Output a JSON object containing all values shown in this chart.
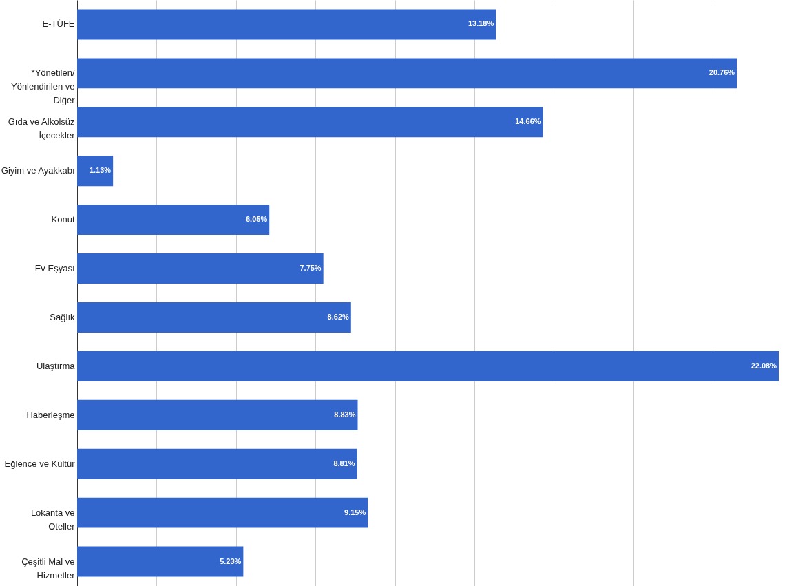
{
  "chart_data": {
    "type": "bar",
    "orientation": "horizontal",
    "categories": [
      "E-TÜFE",
      "*Yönetilen/ Yönlendirilen ve Diğer",
      "Gıda ve Alkolsüz İçecekler",
      "Giyim ve Ayakkabı",
      "Konut",
      "Ev Eşyası",
      "Sağlık",
      "Ulaştırma",
      "Haberleşme",
      "Eğlence ve Kültür",
      "Lokanta ve Oteller",
      "Çeşitli Mal ve Hizmetler"
    ],
    "values": [
      13.18,
      20.76,
      14.66,
      1.13,
      6.05,
      7.75,
      8.62,
      22.08,
      8.83,
      8.81,
      9.15,
      5.23
    ],
    "value_labels": [
      "13.18%",
      "20.76%",
      "14.66%",
      "1.13%",
      "6.05%",
      "7.75%",
      "8.62%",
      "22.08%",
      "8.83%",
      "8.81%",
      "9.15%",
      "5.23%"
    ],
    "color": "#3366cc",
    "xlim": [
      0,
      22.08
    ],
    "xticks": [
      {
        "value": 2.5,
        "label": null
      },
      {
        "value": 5,
        "label": null
      },
      {
        "value": 7.5,
        "label": null
      },
      {
        "value": 10,
        "label": null
      },
      {
        "value": 12.5,
        "label": null
      },
      {
        "value": 15,
        "label": null
      },
      {
        "value": 17.5,
        "label": null
      },
      {
        "value": 20,
        "label": null
      }
    ],
    "grid": "x",
    "tick_labels": "y"
  }
}
